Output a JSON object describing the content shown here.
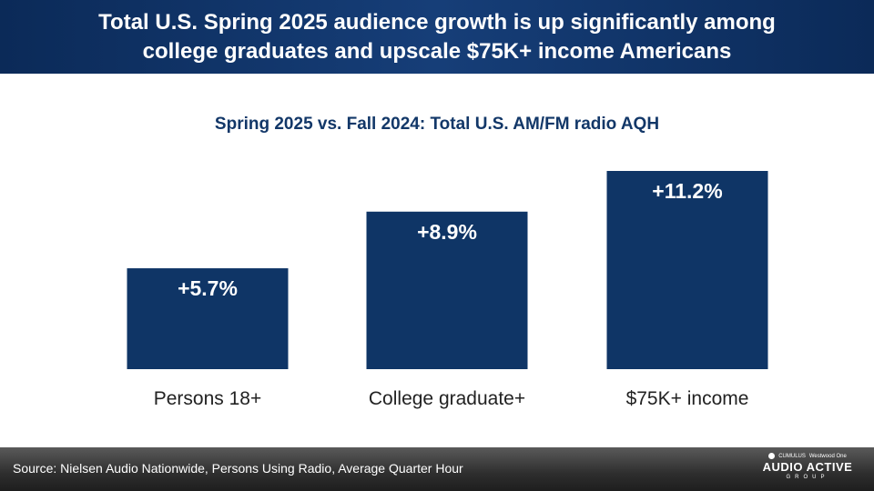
{
  "header": {
    "title": "Total U.S. Spring 2025 audience growth is up significantly among\ncollege graduates and upscale $75K+ income Americans"
  },
  "chart_data": {
    "type": "bar",
    "title": "Spring 2025 vs. Fall 2024: Total U.S. AM/FM radio AQH",
    "categories": [
      "Persons 18+",
      "College graduate+",
      "$75K+ income"
    ],
    "values": [
      5.7,
      8.9,
      11.2
    ],
    "data_labels": [
      "+5.7%",
      "+8.9%",
      "+11.2%"
    ],
    "ylim": [
      0,
      11.2
    ],
    "bar_color": "#0f3566",
    "label_color": "#ffffff",
    "grid": false
  },
  "footer": {
    "source": "Source:  Nielsen Audio Nationwide, Persons Using Radio, Average Quarter Hour",
    "logo_top_left": "CUMULUS",
    "logo_top_right": "Westwood One",
    "logo_main": "AUDIO ACTIVE",
    "logo_sub": "GROUP"
  },
  "colors": {
    "header_bg": "#0b2a58",
    "title_text": "#123768",
    "footer_bg": "#2e2e2e"
  }
}
